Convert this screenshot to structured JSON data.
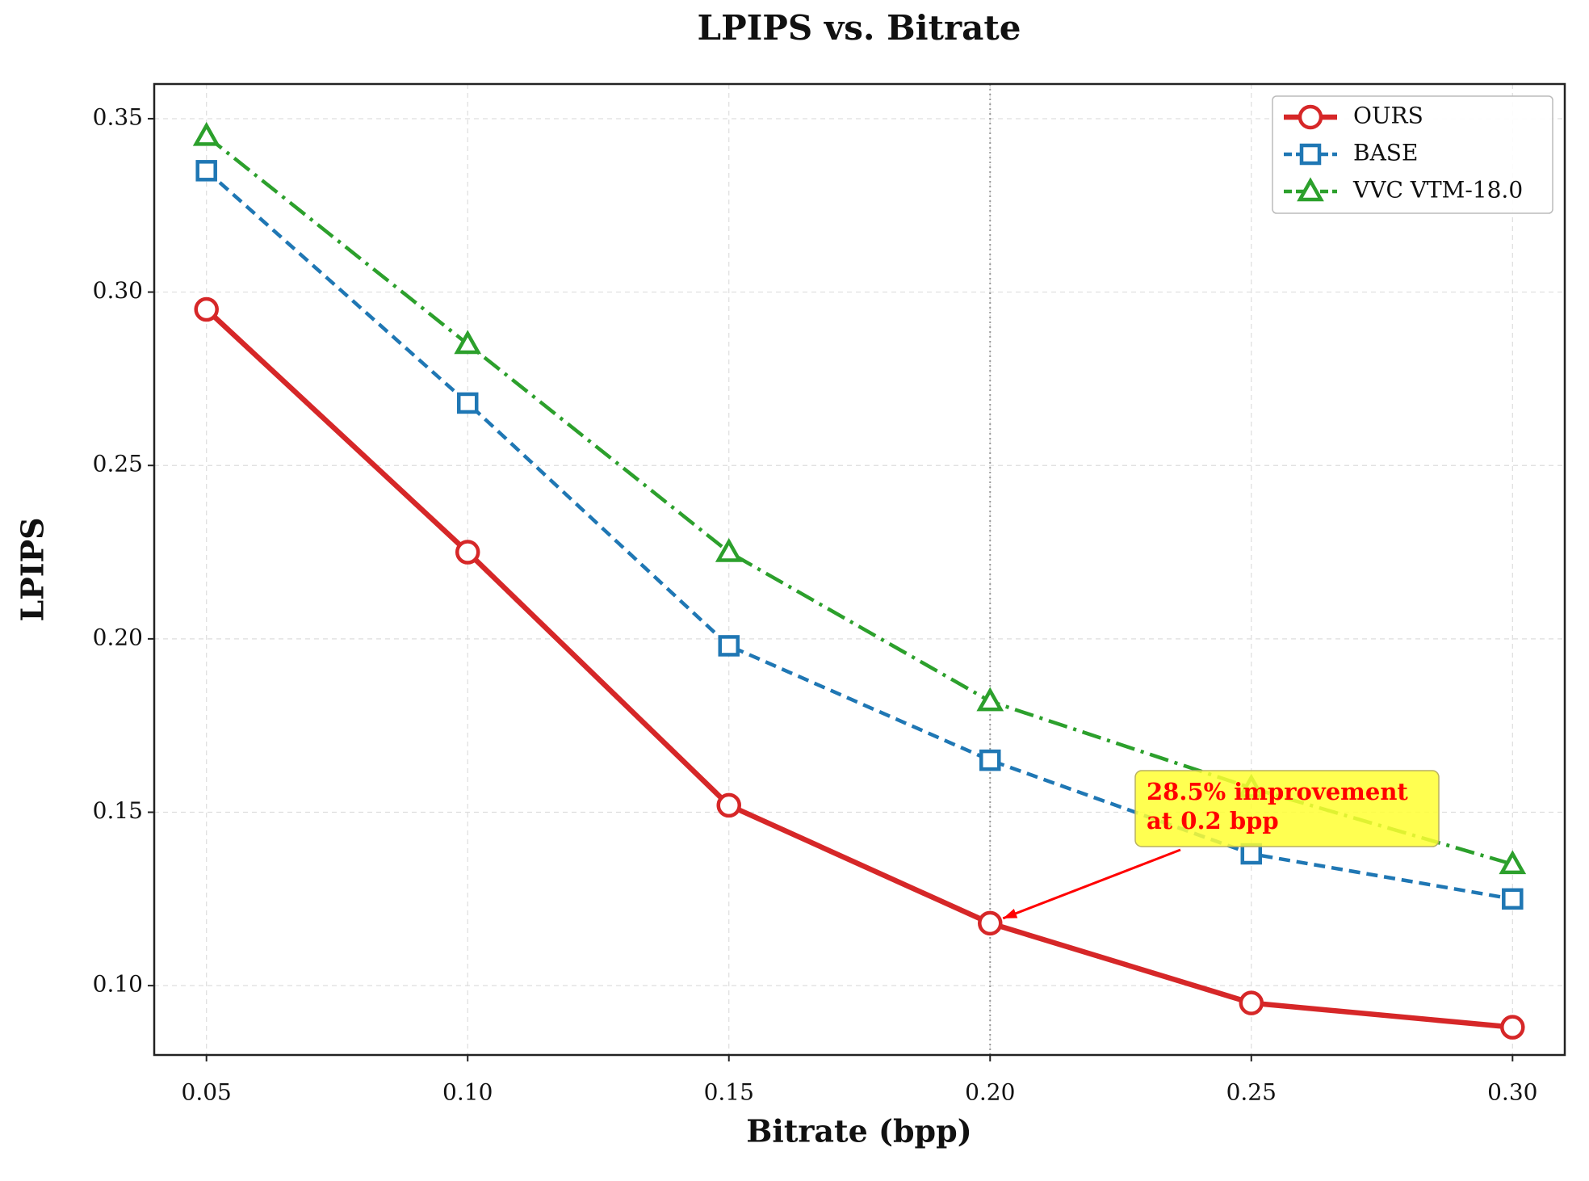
{
  "chart_data": {
    "type": "line",
    "title": "LPIPS vs. Bitrate",
    "x_label": "Bitrate (bpp)",
    "y_label": "LPIPS",
    "x": [
      0.05,
      0.1,
      0.15,
      0.2,
      0.25,
      0.3
    ],
    "series": [
      {
        "name": "OURS",
        "color": "#d62728",
        "values": [
          0.295,
          0.225,
          0.152,
          0.118,
          0.095,
          0.088
        ]
      },
      {
        "name": "BASE",
        "color": "#1f77b4",
        "values": [
          0.335,
          0.268,
          0.198,
          0.165,
          0.138,
          0.125
        ]
      },
      {
        "name": "VVC VTM-18.0",
        "color": "#2ca02c",
        "values": [
          0.345,
          0.285,
          0.225,
          0.182,
          0.157,
          0.135
        ]
      }
    ],
    "xlim": [
      0.04,
      0.31
    ],
    "ylim": [
      0.08,
      0.36
    ],
    "xticks": [
      {
        "value": 0.05,
        "label": "0.05"
      },
      {
        "value": 0.1,
        "label": "0.10"
      },
      {
        "value": 0.15,
        "label": "0.15"
      },
      {
        "value": 0.2,
        "label": "0.20"
      },
      {
        "value": 0.25,
        "label": "0.25"
      },
      {
        "value": 0.3,
        "label": "0.30"
      }
    ],
    "yticks": [
      {
        "value": 0.1,
        "label": "0.10"
      },
      {
        "value": 0.15,
        "label": "0.15"
      },
      {
        "value": 0.2,
        "label": "0.20"
      },
      {
        "value": 0.25,
        "label": "0.25"
      },
      {
        "value": 0.3,
        "label": "0.30"
      },
      {
        "value": 0.35,
        "label": "0.35"
      }
    ],
    "vline": 0.2,
    "annotation": [
      "28.5% improvement",
      "at 0.2 bpp"
    ],
    "grid": true,
    "legend": "upper right"
  }
}
